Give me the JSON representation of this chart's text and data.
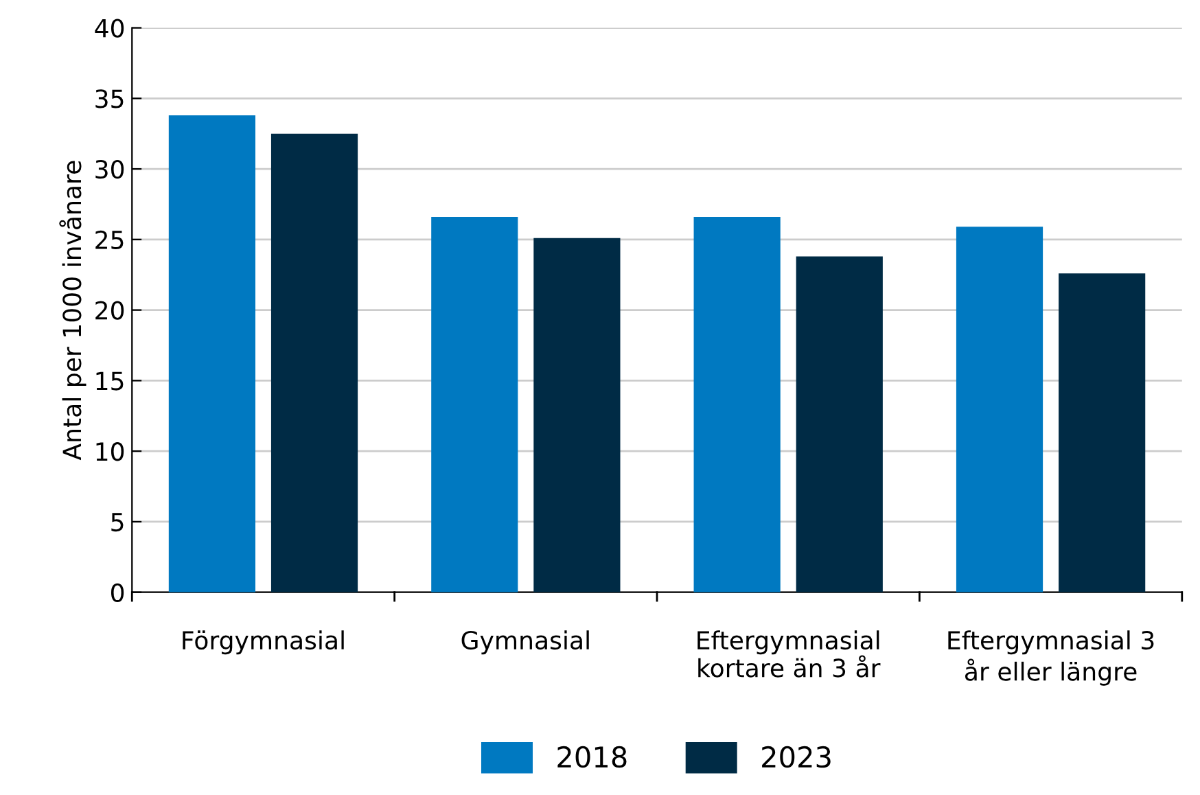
{
  "chart_data": {
    "type": "bar",
    "ylabel": "Antal per 1000 invånare",
    "categories": [
      "Förgymnasial",
      "Gymnasial",
      "Eftergymnasial\nkortare än 3 år",
      "Eftergymnasial 3\når eller längre"
    ],
    "series": [
      {
        "name": "2018",
        "color": "#0079c1",
        "values": [
          33.8,
          26.6,
          26.6,
          25.9
        ]
      },
      {
        "name": "2023",
        "color": "#002b45",
        "values": [
          32.5,
          25.1,
          23.8,
          22.6
        ]
      }
    ],
    "ylim": [
      0,
      40
    ],
    "yticks": [
      0,
      5,
      10,
      15,
      20,
      25,
      30,
      35,
      40
    ],
    "grid": "y",
    "legend": "bottom"
  }
}
